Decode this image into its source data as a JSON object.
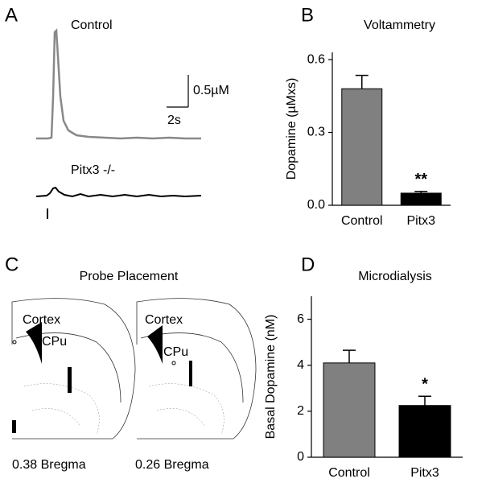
{
  "panel_labels": [
    "A",
    "B",
    "C",
    "D"
  ],
  "traces": {
    "control": "Control",
    "mutant": "Pitx3 -/-",
    "scale_y": "0.5µM",
    "scale_x": "2s"
  },
  "probe": {
    "title": "Probe Placement",
    "sections": [
      {
        "region1": "Cortex",
        "region2": "CPu",
        "label": "0.38 Bregma"
      },
      {
        "region1": "Cortex",
        "region2": "CPu",
        "label": "0.26 Bregma"
      }
    ]
  },
  "chart_data": [
    {
      "type": "bar",
      "title": "Voltammetry",
      "y_label": "Dopamine (µMxs)",
      "categories": [
        "Control",
        "Pitx3"
      ],
      "values": [
        0.48,
        0.05
      ],
      "errors": [
        0.055,
        0.007
      ],
      "colors": [
        "#808080",
        "#000000"
      ],
      "annotation": "**",
      "ylim": [
        0,
        0.63
      ],
      "yticks": [
        {
          "value": 0,
          "label": "0.0"
        },
        0.3,
        0.6
      ]
    },
    {
      "type": "bar",
      "title": "Microdialysis",
      "y_label": "Basal Dopamine (nM)",
      "categories": [
        "Control",
        "Pitx3"
      ],
      "values": [
        4.1,
        2.25
      ],
      "errors": [
        0.55,
        0.4
      ],
      "colors": [
        "#808080",
        "#000000"
      ],
      "annotation": "*",
      "ylim": [
        0,
        7
      ],
      "yticks": [
        0,
        2,
        4,
        6
      ]
    }
  ]
}
